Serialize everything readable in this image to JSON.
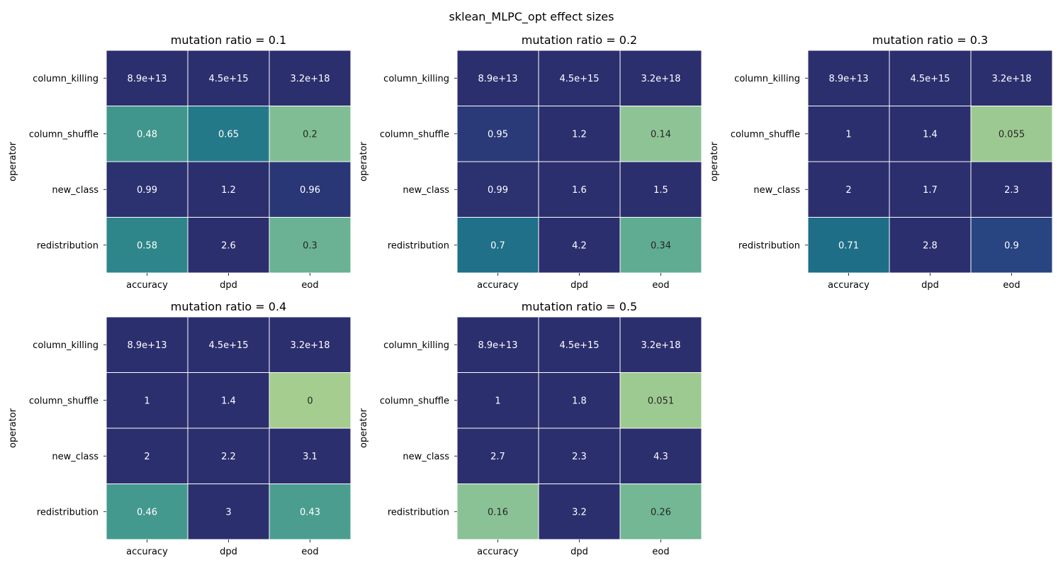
{
  "figure": {
    "title": "sklean_MLPC_opt effect sizes"
  },
  "colors": {
    "palette": "crest",
    "scale": [
      [
        0.0,
        "#a5cd8f"
      ],
      [
        0.15,
        "#8cc395"
      ],
      [
        0.3,
        "#6ab293"
      ],
      [
        0.45,
        "#469b8e"
      ],
      [
        0.6,
        "#2a838a"
      ],
      [
        0.7,
        "#1f7088"
      ],
      [
        0.8,
        "#1f5d85"
      ],
      [
        0.9,
        "#284481"
      ],
      [
        1.0,
        "#2c2f6e"
      ]
    ],
    "vmin": 0,
    "vmax": 1,
    "dark_text": "#262626",
    "light_text": "#ffffff"
  },
  "chart_data": [
    {
      "type": "heatmap",
      "title": "mutation ratio = 0.1",
      "ylabel": "operator",
      "xlabel": "",
      "x_categories": [
        "accuracy",
        "dpd",
        "eod"
      ],
      "y_categories": [
        "column_killing",
        "column_shuffle",
        "new_class",
        "redistribution"
      ],
      "values": [
        [
          89000000000000,
          4500000000000000,
          3200000000000000000
        ],
        [
          0.48,
          0.65,
          0.2
        ],
        [
          0.99,
          1.2,
          0.96
        ],
        [
          0.58,
          2.6,
          0.3
        ]
      ],
      "labels": [
        [
          "8.9e+13",
          "4.5e+15",
          "3.2e+18"
        ],
        [
          "0.48",
          "0.65",
          "0.2"
        ],
        [
          "0.99",
          "1.2",
          "0.96"
        ],
        [
          "0.58",
          "2.6",
          "0.3"
        ]
      ]
    },
    {
      "type": "heatmap",
      "title": "mutation ratio = 0.2",
      "ylabel": "operator",
      "xlabel": "",
      "x_categories": [
        "accuracy",
        "dpd",
        "eod"
      ],
      "y_categories": [
        "column_killing",
        "column_shuffle",
        "new_class",
        "redistribution"
      ],
      "values": [
        [
          89000000000000,
          4500000000000000,
          3200000000000000000
        ],
        [
          0.95,
          1.2,
          0.14
        ],
        [
          0.99,
          1.6,
          1.5
        ],
        [
          0.7,
          4.2,
          0.34
        ]
      ],
      "labels": [
        [
          "8.9e+13",
          "4.5e+15",
          "3.2e+18"
        ],
        [
          "0.95",
          "1.2",
          "0.14"
        ],
        [
          "0.99",
          "1.6",
          "1.5"
        ],
        [
          "0.7",
          "4.2",
          "0.34"
        ]
      ]
    },
    {
      "type": "heatmap",
      "title": "mutation ratio = 0.3",
      "ylabel": "operator",
      "xlabel": "",
      "x_categories": [
        "accuracy",
        "dpd",
        "eod"
      ],
      "y_categories": [
        "column_killing",
        "column_shuffle",
        "new_class",
        "redistribution"
      ],
      "values": [
        [
          89000000000000,
          4500000000000000,
          3200000000000000000
        ],
        [
          1,
          1.4,
          0.055
        ],
        [
          2,
          1.7,
          2.3
        ],
        [
          0.71,
          2.8,
          0.9
        ]
      ],
      "labels": [
        [
          "8.9e+13",
          "4.5e+15",
          "3.2e+18"
        ],
        [
          "1",
          "1.4",
          "0.055"
        ],
        [
          "2",
          "1.7",
          "2.3"
        ],
        [
          "0.71",
          "2.8",
          "0.9"
        ]
      ]
    },
    {
      "type": "heatmap",
      "title": "mutation ratio = 0.4",
      "ylabel": "operator",
      "xlabel": "",
      "x_categories": [
        "accuracy",
        "dpd",
        "eod"
      ],
      "y_categories": [
        "column_killing",
        "column_shuffle",
        "new_class",
        "redistribution"
      ],
      "values": [
        [
          89000000000000,
          4500000000000000,
          3200000000000000000
        ],
        [
          1,
          1.4,
          0
        ],
        [
          2,
          2.2,
          3.1
        ],
        [
          0.46,
          3,
          0.43
        ]
      ],
      "labels": [
        [
          "8.9e+13",
          "4.5e+15",
          "3.2e+18"
        ],
        [
          "1",
          "1.4",
          "0"
        ],
        [
          "2",
          "2.2",
          "3.1"
        ],
        [
          "0.46",
          "3",
          "0.43"
        ]
      ]
    },
    {
      "type": "heatmap",
      "title": "mutation ratio = 0.5",
      "ylabel": "operator",
      "xlabel": "",
      "x_categories": [
        "accuracy",
        "dpd",
        "eod"
      ],
      "y_categories": [
        "column_killing",
        "column_shuffle",
        "new_class",
        "redistribution"
      ],
      "values": [
        [
          89000000000000,
          4500000000000000,
          3200000000000000000
        ],
        [
          1,
          1.8,
          0.051
        ],
        [
          2.7,
          2.3,
          4.3
        ],
        [
          0.16,
          3.2,
          0.26
        ]
      ],
      "labels": [
        [
          "8.9e+13",
          "4.5e+15",
          "3.2e+18"
        ],
        [
          "1",
          "1.8",
          "0.051"
        ],
        [
          "2.7",
          "2.3",
          "4.3"
        ],
        [
          "0.16",
          "3.2",
          "0.26"
        ]
      ]
    }
  ]
}
